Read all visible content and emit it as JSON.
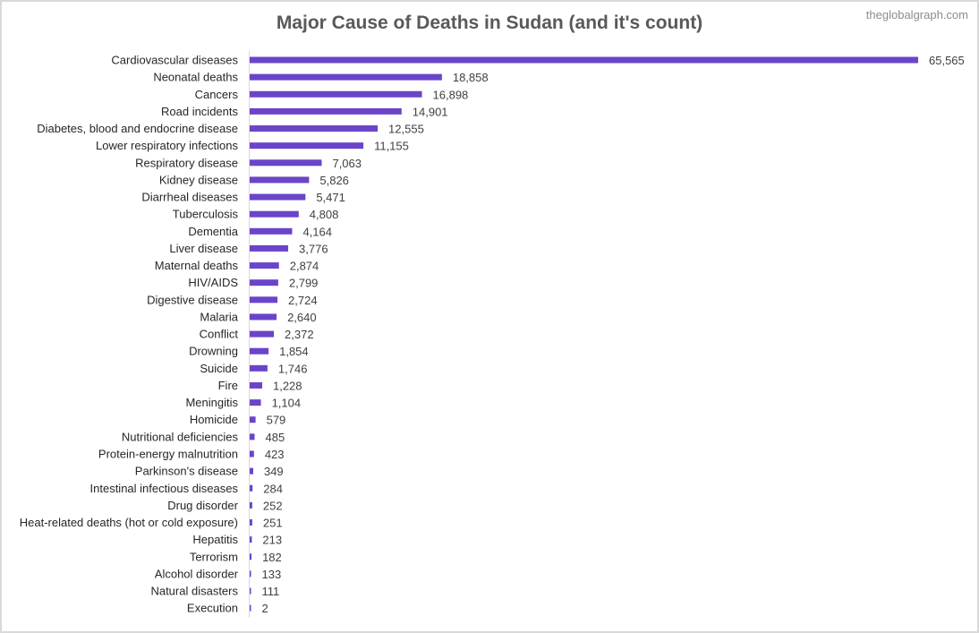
{
  "chart_data": {
    "type": "bar",
    "orientation": "horizontal",
    "title": "Major Cause of Deaths in Sudan (and it's count)",
    "watermark": "theglobalgraph.com",
    "bar_color": "#6a45c9",
    "categories": [
      "Cardiovascular diseases",
      "Neonatal deaths",
      "Cancers",
      "Road incidents",
      "Diabetes, blood and endocrine disease",
      "Lower respiratory infections",
      "Respiratory disease",
      "Kidney disease",
      "Diarrheal diseases",
      "Tuberculosis",
      "Dementia",
      "Liver disease",
      "Maternal deaths",
      "HIV/AIDS",
      "Digestive disease",
      "Malaria",
      "Conflict",
      "Drowning",
      "Suicide",
      "Fire",
      "Meningitis",
      "Homicide",
      "Nutritional deficiencies",
      "Protein-energy malnutrition",
      "Parkinson's disease",
      "Intestinal infectious diseases",
      "Drug disorder",
      "Heat-related deaths (hot or cold exposure)",
      "Hepatitis",
      "Terrorism",
      "Alcohol disorder",
      "Natural disasters",
      "Execution"
    ],
    "values": [
      65565,
      18858,
      16898,
      14901,
      12555,
      11155,
      7063,
      5826,
      5471,
      4808,
      4164,
      3776,
      2874,
      2799,
      2724,
      2640,
      2372,
      1854,
      1746,
      1228,
      1104,
      579,
      485,
      423,
      349,
      284,
      252,
      251,
      213,
      182,
      133,
      111,
      2
    ],
    "value_labels": [
      "65,565",
      "18,858",
      "16,898",
      "14,901",
      "12,555",
      "11,155",
      "7,063",
      "5,826",
      "5,471",
      "4,808",
      "4,164",
      "3,776",
      "2,874",
      "2,799",
      "2,724",
      "2,640",
      "2,372",
      "1,854",
      "1,746",
      "1,228",
      "1,104",
      "579",
      "485",
      "423",
      "349",
      "284",
      "252",
      "251",
      "213",
      "182",
      "133",
      "111",
      "2"
    ],
    "xlim": [
      0,
      65565
    ],
    "grid": false,
    "legend": "none"
  }
}
